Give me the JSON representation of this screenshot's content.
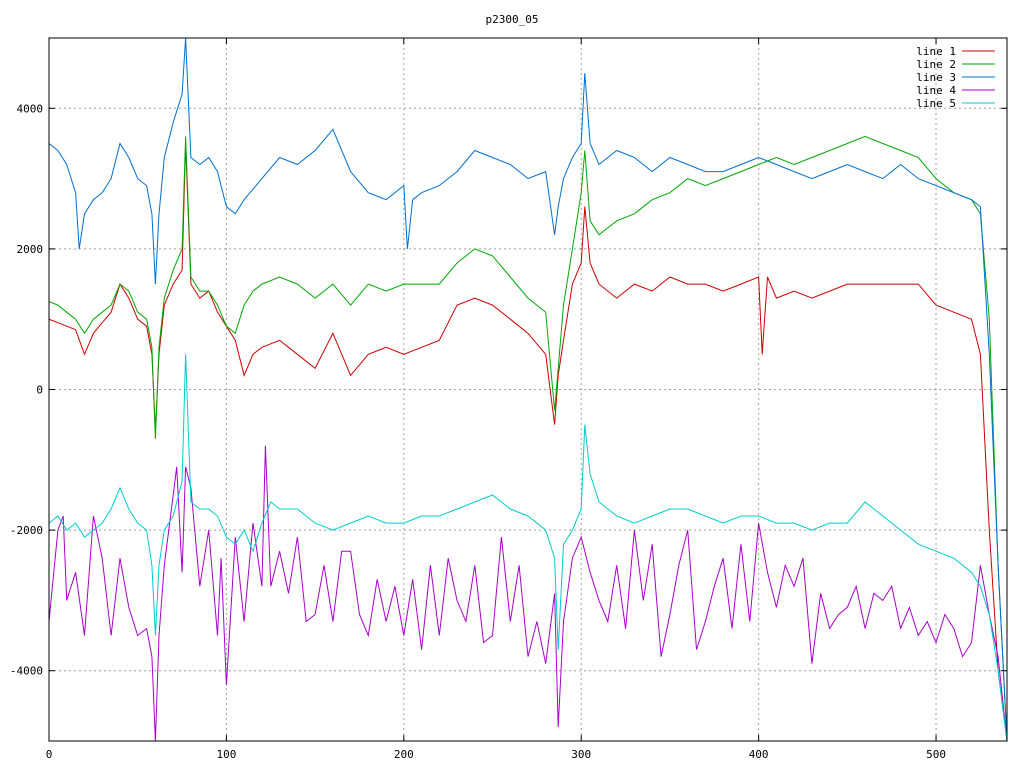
{
  "chart_data": {
    "type": "line",
    "title": "p2300_05",
    "xlabel": "",
    "ylabel": "",
    "xlim": [
      0,
      540
    ],
    "ylim": [
      -5000,
      5000
    ],
    "x_ticks": [
      0,
      100,
      200,
      300,
      400,
      500
    ],
    "y_ticks": [
      -4000,
      -2000,
      0,
      2000,
      4000
    ],
    "x_tick_labels": [
      "0",
      "100",
      "200",
      "300",
      "400",
      "500"
    ],
    "y_tick_labels": [
      "-4000",
      "-2000",
      "0",
      "2000",
      "4000"
    ],
    "grid": true,
    "legend_position": "top-right",
    "series": [
      {
        "name": "line 1",
        "color": "#cc0000",
        "x": [
          0,
          5,
          10,
          15,
          20,
          25,
          30,
          35,
          40,
          45,
          50,
          55,
          58,
          60,
          62,
          65,
          70,
          75,
          77,
          80,
          85,
          90,
          95,
          100,
          105,
          110,
          115,
          120,
          130,
          140,
          150,
          160,
          170,
          180,
          190,
          200,
          210,
          220,
          230,
          240,
          250,
          260,
          270,
          280,
          285,
          287,
          290,
          295,
          300,
          302,
          305,
          310,
          320,
          330,
          340,
          350,
          360,
          370,
          380,
          390,
          400,
          402,
          405,
          410,
          420,
          430,
          440,
          450,
          460,
          470,
          480,
          490,
          500,
          510,
          520,
          525,
          530,
          535,
          540
        ],
        "y": [
          1000,
          950,
          900,
          850,
          500,
          800,
          950,
          1100,
          1500,
          1300,
          1000,
          900,
          500,
          -600,
          500,
          1200,
          1500,
          1700,
          3500,
          1500,
          1300,
          1400,
          1100,
          900,
          700,
          200,
          500,
          600,
          700,
          500,
          300,
          800,
          200,
          500,
          600,
          500,
          600,
          700,
          1200,
          1300,
          1200,
          1000,
          800,
          500,
          -500,
          200,
          700,
          1500,
          1800,
          2600,
          1800,
          1500,
          1300,
          1500,
          1400,
          1600,
          1500,
          1500,
          1400,
          1500,
          1600,
          500,
          1600,
          1300,
          1400,
          1300,
          1400,
          1500,
          1500,
          1500,
          1500,
          1500,
          1200,
          1100,
          1000,
          500,
          -2000,
          -4000,
          -5000
        ]
      },
      {
        "name": "line 2",
        "color": "#00aa00",
        "x": [
          0,
          5,
          10,
          15,
          20,
          25,
          30,
          35,
          40,
          45,
          50,
          55,
          58,
          60,
          62,
          65,
          70,
          75,
          77,
          80,
          85,
          90,
          95,
          100,
          105,
          110,
          115,
          120,
          130,
          140,
          150,
          160,
          170,
          180,
          190,
          200,
          210,
          220,
          230,
          240,
          250,
          260,
          270,
          280,
          285,
          287,
          290,
          295,
          300,
          302,
          305,
          310,
          320,
          330,
          340,
          350,
          360,
          370,
          380,
          390,
          400,
          410,
          420,
          430,
          440,
          450,
          460,
          470,
          480,
          490,
          500,
          510,
          520,
          525,
          530,
          535,
          540
        ],
        "y": [
          1250,
          1200,
          1100,
          1000,
          800,
          1000,
          1100,
          1200,
          1500,
          1400,
          1100,
          1000,
          600,
          -700,
          600,
          1300,
          1700,
          2000,
          3600,
          1600,
          1400,
          1400,
          1200,
          900,
          800,
          1200,
          1400,
          1500,
          1600,
          1500,
          1300,
          1500,
          1200,
          1500,
          1400,
          1500,
          1500,
          1500,
          1800,
          2000,
          1900,
          1600,
          1300,
          1100,
          -300,
          300,
          1200,
          2000,
          2800,
          3400,
          2400,
          2200,
          2400,
          2500,
          2700,
          2800,
          3000,
          2900,
          3000,
          3100,
          3200,
          3300,
          3200,
          3300,
          3400,
          3500,
          3600,
          3500,
          3400,
          3300,
          3000,
          2800,
          2700,
          2500,
          1000,
          -2500,
          -5000
        ]
      },
      {
        "name": "line 3",
        "color": "#0070d0",
        "x": [
          0,
          5,
          10,
          15,
          17,
          20,
          25,
          30,
          35,
          40,
          45,
          50,
          55,
          58,
          60,
          62,
          65,
          70,
          75,
          77,
          80,
          85,
          90,
          95,
          100,
          105,
          110,
          120,
          130,
          140,
          150,
          160,
          170,
          180,
          190,
          200,
          202,
          205,
          210,
          220,
          230,
          240,
          250,
          260,
          270,
          280,
          285,
          287,
          290,
          295,
          300,
          302,
          305,
          310,
          320,
          330,
          340,
          350,
          360,
          370,
          380,
          390,
          400,
          410,
          420,
          430,
          440,
          450,
          460,
          470,
          480,
          490,
          500,
          510,
          520,
          525,
          530,
          535,
          540
        ],
        "y": [
          3500,
          3400,
          3200,
          2800,
          2000,
          2500,
          2700,
          2800,
          3000,
          3500,
          3300,
          3000,
          2900,
          2500,
          1500,
          2500,
          3300,
          3800,
          4200,
          5000,
          3300,
          3200,
          3300,
          3100,
          2600,
          2500,
          2700,
          3000,
          3300,
          3200,
          3400,
          3700,
          3100,
          2800,
          2700,
          2900,
          2000,
          2700,
          2800,
          2900,
          3100,
          3400,
          3300,
          3200,
          3000,
          3100,
          2200,
          2600,
          3000,
          3300,
          3500,
          4500,
          3500,
          3200,
          3400,
          3300,
          3100,
          3300,
          3200,
          3100,
          3100,
          3200,
          3300,
          3200,
          3100,
          3000,
          3100,
          3200,
          3100,
          3000,
          3200,
          3000,
          2900,
          2800,
          2700,
          2600,
          500,
          -2500,
          -5000
        ]
      },
      {
        "name": "line 4",
        "color": "#aa00cc",
        "x": [
          0,
          5,
          8,
          10,
          15,
          20,
          25,
          30,
          35,
          40,
          45,
          50,
          55,
          58,
          60,
          62,
          65,
          70,
          72,
          75,
          77,
          80,
          85,
          90,
          95,
          97,
          100,
          105,
          110,
          115,
          120,
          122,
          125,
          130,
          135,
          140,
          145,
          150,
          155,
          160,
          165,
          170,
          175,
          180,
          185,
          190,
          195,
          200,
          205,
          210,
          215,
          220,
          225,
          230,
          235,
          240,
          245,
          250,
          255,
          260,
          265,
          270,
          275,
          280,
          285,
          287,
          290,
          295,
          300,
          305,
          310,
          315,
          320,
          325,
          330,
          335,
          340,
          345,
          350,
          355,
          360,
          365,
          370,
          375,
          380,
          385,
          390,
          395,
          400,
          405,
          410,
          415,
          420,
          425,
          430,
          435,
          440,
          445,
          450,
          455,
          460,
          465,
          470,
          475,
          480,
          485,
          490,
          495,
          500,
          505,
          510,
          515,
          520,
          525,
          530,
          535,
          540
        ],
        "y": [
          -3300,
          -2000,
          -1800,
          -3000,
          -2600,
          -3500,
          -1800,
          -2400,
          -3500,
          -2400,
          -3100,
          -3500,
          -3400,
          -3800,
          -5000,
          -3500,
          -2500,
          -1500,
          -1100,
          -2600,
          -1100,
          -1400,
          -2800,
          -2000,
          -3500,
          -2400,
          -4200,
          -2100,
          -3300,
          -1900,
          -2800,
          -800,
          -2800,
          -2300,
          -2900,
          -2100,
          -3300,
          -3200,
          -2500,
          -3300,
          -2300,
          -2300,
          -3200,
          -3500,
          -2700,
          -3300,
          -2800,
          -3500,
          -2700,
          -3700,
          -2500,
          -3500,
          -2400,
          -3000,
          -3300,
          -2500,
          -3600,
          -3500,
          -2100,
          -3300,
          -2500,
          -3800,
          -3300,
          -3900,
          -2900,
          -4800,
          -3300,
          -2400,
          -2100,
          -2600,
          -3000,
          -3300,
          -2500,
          -3400,
          -2000,
          -3000,
          -2200,
          -3800,
          -3200,
          -2500,
          -2000,
          -3700,
          -3300,
          -2800,
          -2400,
          -3400,
          -2200,
          -3300,
          -1900,
          -2600,
          -3100,
          -2500,
          -2800,
          -2400,
          -3900,
          -2900,
          -3400,
          -3200,
          -3100,
          -2800,
          -3400,
          -2900,
          -3000,
          -2800,
          -3400,
          -3100,
          -3500,
          -3300,
          -3600,
          -3200,
          -3400,
          -3800,
          -3600,
          -2500,
          -3200,
          -3800,
          -5000
        ]
      },
      {
        "name": "line 5",
        "color": "#00cccc",
        "x": [
          0,
          5,
          10,
          15,
          20,
          25,
          30,
          35,
          40,
          45,
          50,
          55,
          58,
          60,
          62,
          65,
          70,
          75,
          77,
          80,
          85,
          90,
          95,
          100,
          105,
          110,
          115,
          120,
          125,
          130,
          140,
          150,
          160,
          170,
          180,
          190,
          200,
          210,
          220,
          230,
          240,
          250,
          260,
          270,
          280,
          285,
          287,
          290,
          295,
          300,
          302,
          305,
          310,
          320,
          330,
          340,
          350,
          360,
          370,
          380,
          390,
          400,
          410,
          420,
          430,
          440,
          450,
          460,
          470,
          480,
          490,
          500,
          510,
          520,
          525,
          530,
          535,
          540
        ],
        "y": [
          -1900,
          -1800,
          -2000,
          -1900,
          -2100,
          -2000,
          -1900,
          -1700,
          -1400,
          -1700,
          -1900,
          -2000,
          -2500,
          -3500,
          -2500,
          -2000,
          -1800,
          -1300,
          500,
          -1600,
          -1700,
          -1700,
          -1800,
          -2100,
          -2200,
          -2000,
          -2300,
          -1900,
          -1600,
          -1700,
          -1700,
          -1900,
          -2000,
          -1900,
          -1800,
          -1900,
          -1900,
          -1800,
          -1800,
          -1700,
          -1600,
          -1500,
          -1700,
          -1800,
          -2000,
          -2400,
          -3700,
          -2200,
          -2000,
          -1700,
          -500,
          -1200,
          -1600,
          -1800,
          -1900,
          -1800,
          -1700,
          -1700,
          -1800,
          -1900,
          -1800,
          -1800,
          -1900,
          -1900,
          -2000,
          -1900,
          -1900,
          -1600,
          -1800,
          -2000,
          -2200,
          -2300,
          -2400,
          -2600,
          -2800,
          -3200,
          -4000,
          -5000
        ]
      }
    ]
  }
}
